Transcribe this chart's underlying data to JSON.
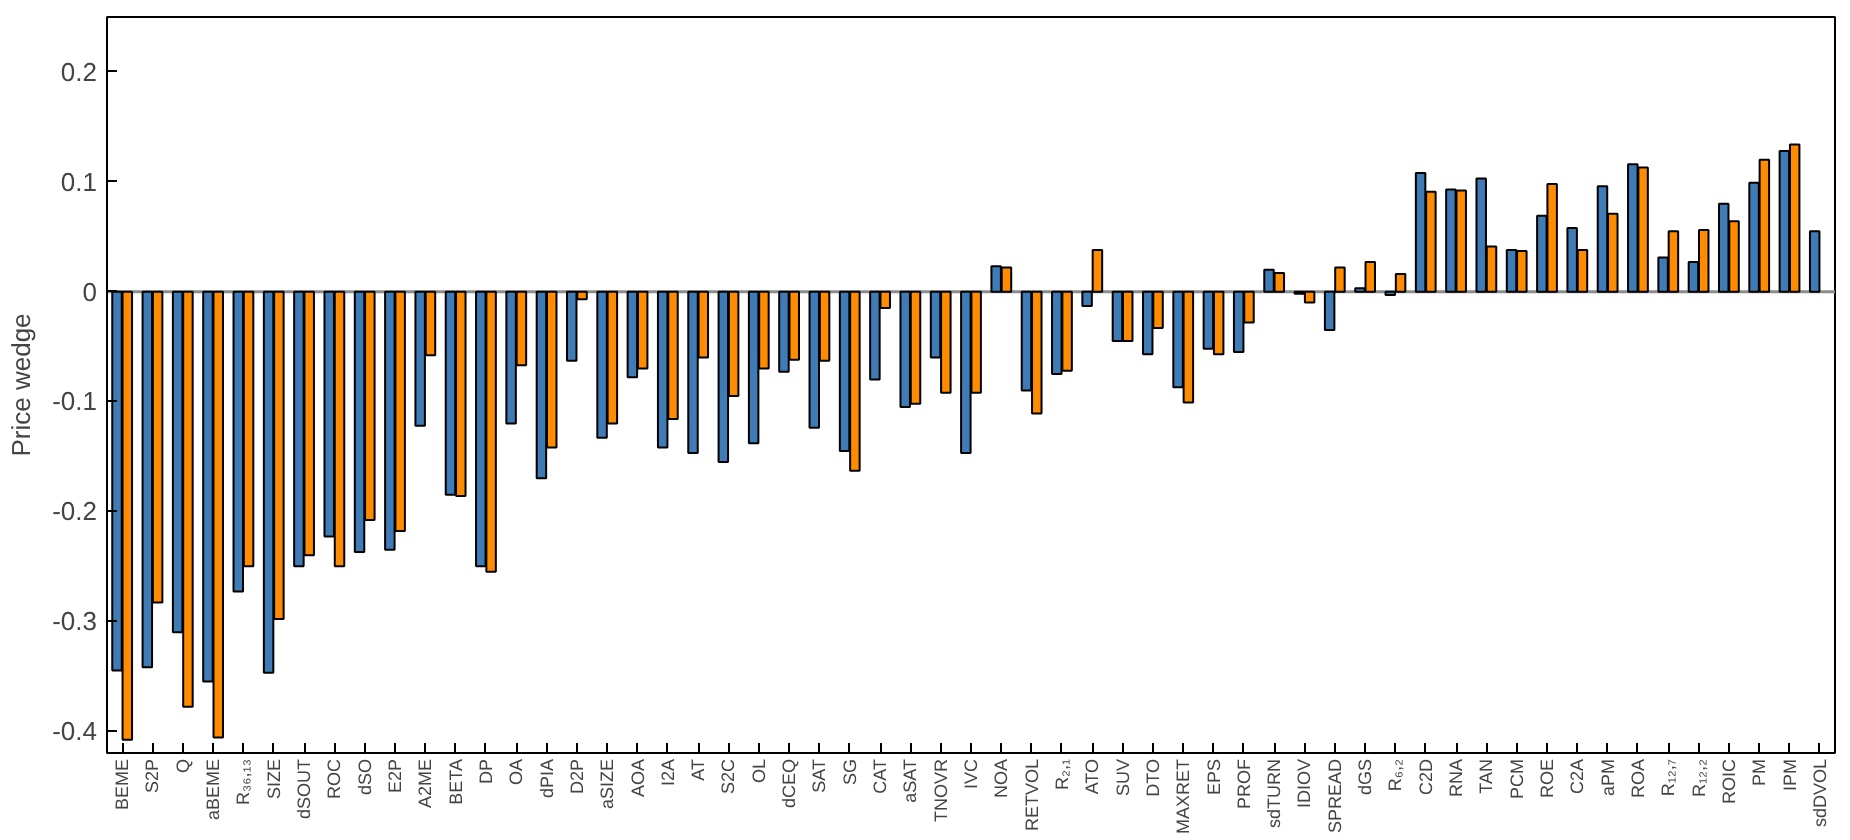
{
  "chart_data": {
    "type": "bar",
    "ylabel": "Price wedge",
    "categories": [
      "BEME",
      "S2P",
      "Q",
      "aBEME",
      "R₃₆,₁₃",
      "SIZE",
      "dSOUT",
      "ROC",
      "dSO",
      "E2P",
      "A2ME",
      "BETA",
      "DP",
      "OA",
      "dPIA",
      "D2P",
      "aSIZE",
      "AOA",
      "I2A",
      "AT",
      "S2C",
      "OL",
      "dCEQ",
      "SAT",
      "SG",
      "CAT",
      "aSAT",
      "TNOVR",
      "IVC",
      "NOA",
      "RETVOL",
      "R₂,₁",
      "ATO",
      "SUV",
      "DTO",
      "MAXRET",
      "EPS",
      "PROF",
      "sdTURN",
      "IDIOV",
      "SPREAD",
      "dGS",
      "R₆,₂",
      "C2D",
      "RNA",
      "TAN",
      "PCM",
      "ROE",
      "C2A",
      "aPM",
      "ROA",
      "R₁₂,₇",
      "R₁₂,₂",
      "ROIC",
      "PM",
      "IPM",
      "sdDVOL"
    ],
    "series": [
      {
        "color": "#3f7cb5",
        "values": [
          -0.345,
          -0.342,
          -0.31,
          -0.355,
          -0.273,
          -0.347,
          -0.25,
          -0.223,
          -0.237,
          -0.235,
          -0.122,
          -0.185,
          -0.25,
          -0.12,
          -0.17,
          -0.063,
          -0.133,
          -0.078,
          -0.142,
          -0.147,
          -0.155,
          -0.138,
          -0.073,
          -0.124,
          -0.145,
          -0.08,
          -0.105,
          -0.06,
          -0.147,
          0.023,
          -0.09,
          -0.075,
          -0.013,
          -0.045,
          -0.057,
          -0.087,
          -0.052,
          -0.055,
          0.02,
          -0.002,
          -0.035,
          0.003,
          -0.003,
          0.108,
          0.093,
          0.103,
          0.038,
          0.069,
          0.058,
          0.096,
          0.116,
          0.031,
          0.027,
          0.08,
          0.099,
          0.128,
          0.055
        ]
      },
      {
        "color": "#ff8c00",
        "values": [
          -0.408,
          -0.283,
          -0.378,
          -0.406,
          -0.25,
          -0.298,
          -0.24,
          -0.25,
          -0.208,
          -0.218,
          -0.058,
          -0.186,
          -0.255,
          -0.067,
          -0.142,
          -0.007,
          -0.12,
          -0.07,
          -0.116,
          -0.06,
          -0.095,
          -0.07,
          -0.062,
          -0.063,
          -0.163,
          -0.015,
          -0.102,
          -0.092,
          -0.092,
          0.022,
          -0.111,
          -0.072,
          0.038,
          -0.045,
          -0.033,
          -0.101,
          -0.057,
          -0.028,
          0.017,
          -0.01,
          0.022,
          0.027,
          0.016,
          0.091,
          0.092,
          0.041,
          0.037,
          0.098,
          0.038,
          0.071,
          0.113,
          0.055,
          0.056,
          0.064,
          0.12,
          0.134,
          null
        ]
      }
    ],
    "ylim": [
      -0.42,
      0.25
    ],
    "yticks": [
      {
        "value": -0.4,
        "label": "-0.4"
      },
      {
        "value": -0.3,
        "label": "-0.3"
      },
      {
        "value": -0.2,
        "label": "-0.2"
      },
      {
        "value": -0.1,
        "label": "-0.1"
      },
      0,
      {
        "value": 0.1,
        "label": "0.1"
      },
      {
        "value": 0.2,
        "label": "0.2"
      }
    ],
    "ref_lines": [
      {
        "axis": "y",
        "value": 0,
        "color": "#8c8c8c"
      }
    ],
    "grid": false
  }
}
